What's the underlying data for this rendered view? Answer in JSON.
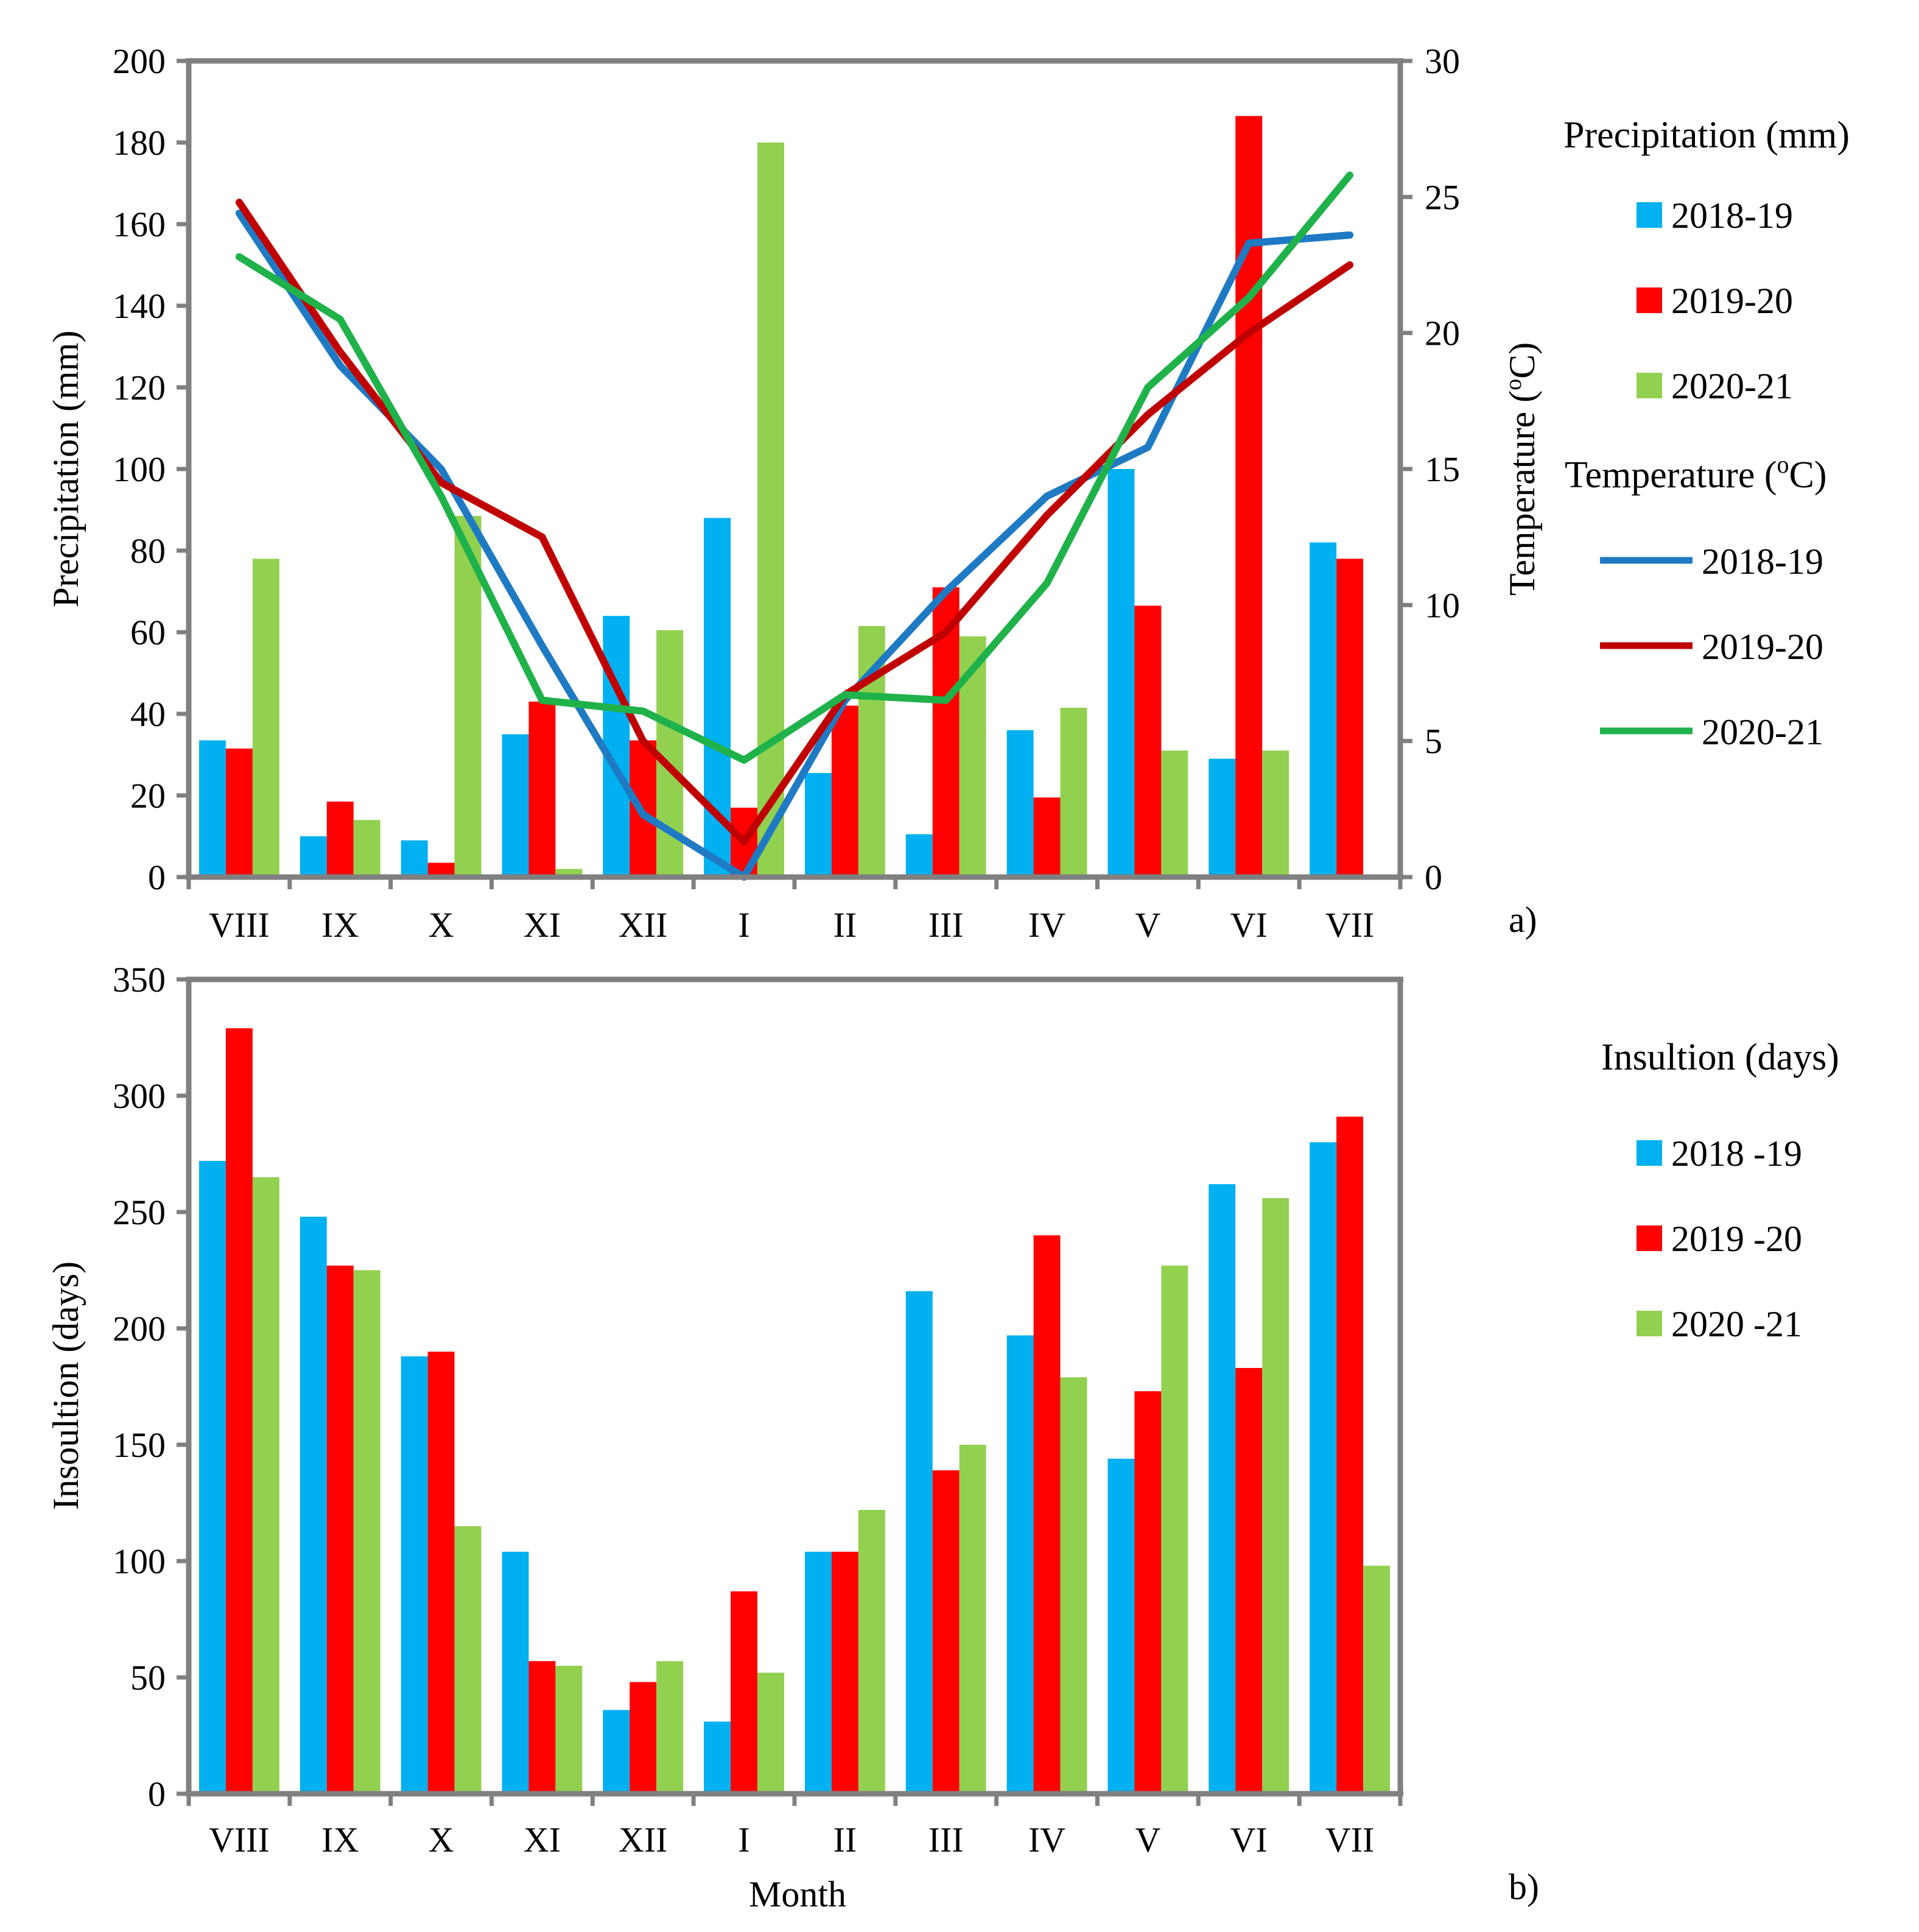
{
  "colors": {
    "bar_2018_19": "#00b0f0",
    "bar_2019_20": "#ff0000",
    "bar_2020_21": "#92d050",
    "line_2018_19": "#1f7ac4",
    "line_2019_20": "#c00000",
    "line_2020_21": "#1fb24a",
    "axis": "#808080"
  },
  "chart_data": [
    {
      "id": "a",
      "panel_label": "a)",
      "type": "bar+line",
      "categories": [
        "VIII",
        "IX",
        "X",
        "XI",
        "XII",
        "I",
        "II",
        "III",
        "IV",
        "V",
        "VI",
        "VII"
      ],
      "ylabel": "Precipitation (mm)",
      "ylim": [
        0,
        200
      ],
      "yticks": [
        "0",
        "20",
        "40",
        "60",
        "80",
        "100",
        "120",
        "140",
        "160",
        "180",
        "200"
      ],
      "y2label_prefix": "Temperature (",
      "y2label_sup": "o",
      "y2label_suffix": "C)",
      "y2lim": [
        0,
        30
      ],
      "y2ticks": [
        "0",
        "5",
        "10",
        "15",
        "20",
        "25",
        "30"
      ],
      "bar_series": [
        {
          "name": "2018-19",
          "values": [
            33.5,
            10,
            9,
            35,
            64,
            88,
            25.5,
            10.5,
            36,
            100,
            29,
            82
          ]
        },
        {
          "name": "2019-20",
          "values": [
            31.5,
            18.5,
            3.5,
            43,
            33.5,
            17,
            42,
            71,
            19.5,
            66.5,
            186.5,
            78
          ]
        },
        {
          "name": "2020-21",
          "values": [
            78,
            14,
            88.5,
            2,
            60.5,
            180,
            61.5,
            59,
            41.5,
            31,
            31,
            null
          ]
        }
      ],
      "line_series": [
        {
          "name": "2018-19",
          "values": [
            24.4,
            18.8,
            15,
            8.5,
            2.3,
            0,
            6.5,
            10.5,
            14,
            15.8,
            23.3,
            23.6
          ]
        },
        {
          "name": "2019-20",
          "values": [
            24.8,
            19.3,
            14.5,
            12.5,
            5,
            1.3,
            6.7,
            9,
            13.3,
            17,
            20,
            22.5
          ]
        },
        {
          "name": "2020-21",
          "values": [
            22.8,
            20.5,
            14,
            6.5,
            6.1,
            4.3,
            6.7,
            6.5,
            10.8,
            18,
            21.3,
            25.8
          ]
        }
      ],
      "legend": {
        "bars_title": "Precipitation (mm)",
        "bar_labels": [
          "2018-19",
          "2019-20",
          "2020-21"
        ],
        "lines_title_prefix": "Temperature (",
        "lines_title_sup": "o",
        "lines_title_suffix": "C)",
        "line_labels": [
          "2018-19",
          "2019-20",
          "2020-21"
        ]
      }
    },
    {
      "id": "b",
      "panel_label": "b)",
      "type": "bar",
      "categories": [
        "VIII",
        "IX",
        "X",
        "XI",
        "XII",
        "I",
        "II",
        "III",
        "IV",
        "V",
        "VI",
        "VII"
      ],
      "xlabel": "Month",
      "ylabel": "Insoultion (days)",
      "ylim": [
        0,
        350
      ],
      "yticks": [
        "0",
        "50",
        "100",
        "150",
        "200",
        "250",
        "300",
        "350"
      ],
      "series": [
        {
          "name": "2018 -19",
          "values": [
            272,
            248,
            188,
            104,
            36,
            31,
            104,
            216,
            197,
            144,
            262,
            280
          ]
        },
        {
          "name": "2019 -20",
          "values": [
            329,
            227,
            190,
            57,
            48,
            87,
            104,
            139,
            240,
            173,
            183,
            291
          ]
        },
        {
          "name": "2020 -21",
          "values": [
            265,
            225,
            115,
            55,
            57,
            52,
            122,
            150,
            179,
            227,
            256,
            98
          ]
        }
      ],
      "legend": {
        "title": "Insultion (days)",
        "labels": [
          "2018 -19",
          "2019 -20",
          "2020 -21"
        ]
      }
    }
  ]
}
